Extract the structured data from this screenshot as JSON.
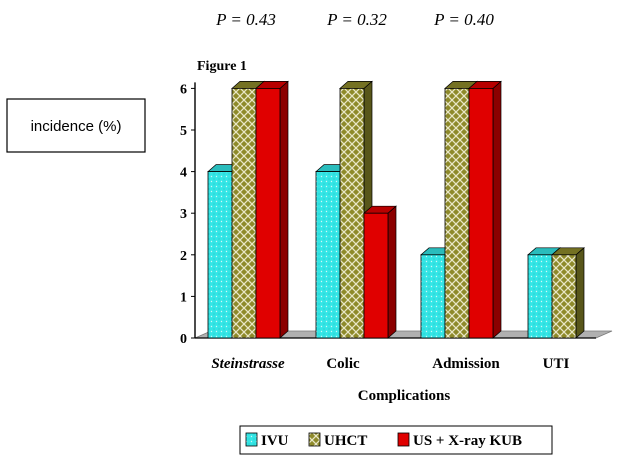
{
  "chart_data": {
    "type": "bar",
    "figure_label": "Figure 1",
    "ylabel": "incidence (%)",
    "xlabel": "Complications",
    "categories": [
      "Steinstrasse",
      "Colic",
      "Admission",
      "UTI"
    ],
    "p_values": [
      "P = 0.43",
      "P = 0.32",
      "P = 0.40"
    ],
    "yticks": [
      "0",
      "1",
      "2",
      "3",
      "4",
      "5",
      "6"
    ],
    "ylim": [
      0,
      6
    ],
    "series": [
      {
        "name": "IVU",
        "values": [
          4,
          4,
          2,
          2
        ],
        "color": "#33e5e5",
        "pattern": "dots"
      },
      {
        "name": "UHCT",
        "values": [
          6,
          6,
          6,
          2
        ],
        "color": "#8e8a2a",
        "pattern": "crosshatch"
      },
      {
        "name": "US + X-ray KUB",
        "values": [
          6,
          3,
          6,
          0
        ],
        "color": "#e00000",
        "pattern": "solid"
      }
    ],
    "legend_position": "bottom",
    "grid": false,
    "style": "3d"
  }
}
